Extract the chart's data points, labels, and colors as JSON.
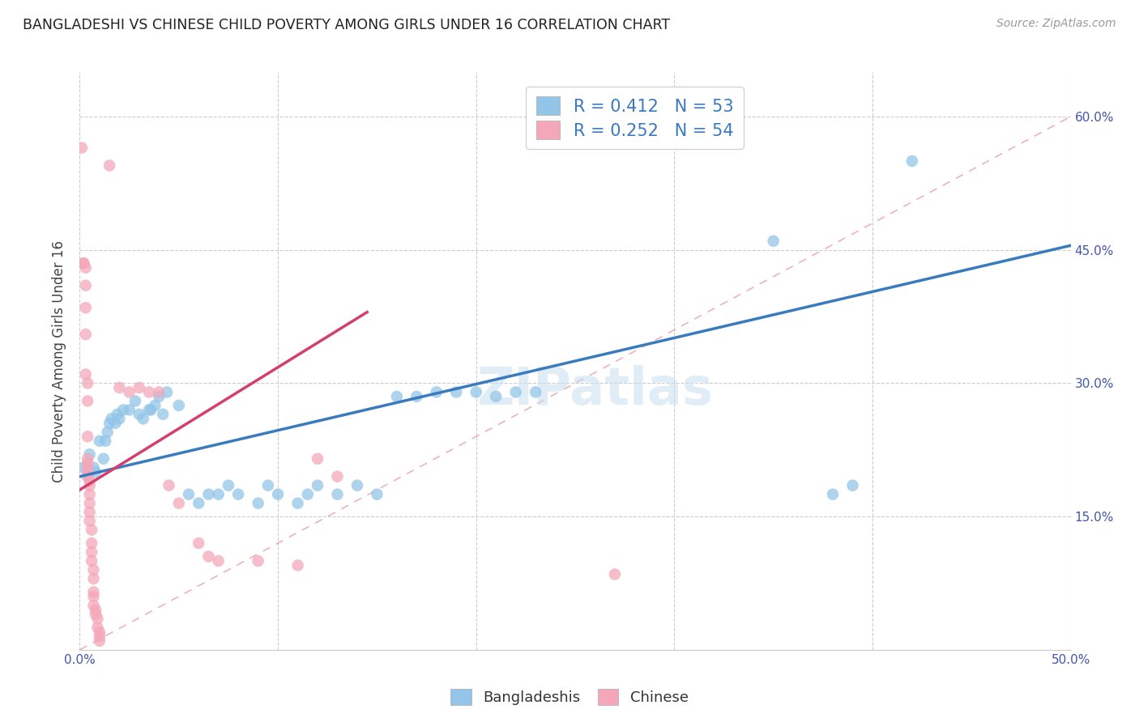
{
  "title": "BANGLADESHI VS CHINESE CHILD POVERTY AMONG GIRLS UNDER 16 CORRELATION CHART",
  "source": "Source: ZipAtlas.com",
  "ylabel": "Child Poverty Among Girls Under 16",
  "xlim": [
    0.0,
    0.5
  ],
  "ylim": [
    0.0,
    0.65
  ],
  "xticks": [
    0.0,
    0.1,
    0.2,
    0.3,
    0.4,
    0.5
  ],
  "yticks": [
    0.0,
    0.15,
    0.3,
    0.45,
    0.6
  ],
  "xticklabels": [
    "0.0%",
    "",
    "",
    "",
    "",
    "50.0%"
  ],
  "yticklabels_right": [
    "",
    "15.0%",
    "30.0%",
    "45.0%",
    "60.0%"
  ],
  "watermark": "ZIPatlas",
  "blue_color": "#92c5e8",
  "pink_color": "#f4a7b9",
  "blue_line_color": "#3a7abf",
  "pink_line_color": "#d43f6e",
  "ref_line_color": "#e8b4b8",
  "blue_scatter": [
    [
      0.002,
      0.205
    ],
    [
      0.004,
      0.195
    ],
    [
      0.005,
      0.22
    ],
    [
      0.007,
      0.205
    ],
    [
      0.008,
      0.2
    ],
    [
      0.01,
      0.235
    ],
    [
      0.012,
      0.215
    ],
    [
      0.013,
      0.235
    ],
    [
      0.014,
      0.245
    ],
    [
      0.015,
      0.255
    ],
    [
      0.016,
      0.26
    ],
    [
      0.018,
      0.255
    ],
    [
      0.019,
      0.265
    ],
    [
      0.02,
      0.26
    ],
    [
      0.022,
      0.27
    ],
    [
      0.025,
      0.27
    ],
    [
      0.028,
      0.28
    ],
    [
      0.03,
      0.265
    ],
    [
      0.032,
      0.26
    ],
    [
      0.035,
      0.27
    ],
    [
      0.036,
      0.27
    ],
    [
      0.038,
      0.275
    ],
    [
      0.04,
      0.285
    ],
    [
      0.042,
      0.265
    ],
    [
      0.044,
      0.29
    ],
    [
      0.05,
      0.275
    ],
    [
      0.055,
      0.175
    ],
    [
      0.06,
      0.165
    ],
    [
      0.065,
      0.175
    ],
    [
      0.07,
      0.175
    ],
    [
      0.075,
      0.185
    ],
    [
      0.08,
      0.175
    ],
    [
      0.09,
      0.165
    ],
    [
      0.095,
      0.185
    ],
    [
      0.1,
      0.175
    ],
    [
      0.11,
      0.165
    ],
    [
      0.115,
      0.175
    ],
    [
      0.12,
      0.185
    ],
    [
      0.13,
      0.175
    ],
    [
      0.14,
      0.185
    ],
    [
      0.15,
      0.175
    ],
    [
      0.16,
      0.285
    ],
    [
      0.17,
      0.285
    ],
    [
      0.18,
      0.29
    ],
    [
      0.19,
      0.29
    ],
    [
      0.2,
      0.29
    ],
    [
      0.21,
      0.285
    ],
    [
      0.22,
      0.29
    ],
    [
      0.23,
      0.29
    ],
    [
      0.35,
      0.46
    ],
    [
      0.38,
      0.175
    ],
    [
      0.39,
      0.185
    ],
    [
      0.42,
      0.55
    ]
  ],
  "pink_scatter": [
    [
      0.001,
      0.565
    ],
    [
      0.002,
      0.435
    ],
    [
      0.002,
      0.435
    ],
    [
      0.003,
      0.43
    ],
    [
      0.003,
      0.41
    ],
    [
      0.003,
      0.385
    ],
    [
      0.003,
      0.355
    ],
    [
      0.003,
      0.31
    ],
    [
      0.004,
      0.3
    ],
    [
      0.004,
      0.28
    ],
    [
      0.004,
      0.24
    ],
    [
      0.004,
      0.215
    ],
    [
      0.004,
      0.21
    ],
    [
      0.004,
      0.205
    ],
    [
      0.004,
      0.2
    ],
    [
      0.004,
      0.195
    ],
    [
      0.005,
      0.19
    ],
    [
      0.005,
      0.185
    ],
    [
      0.005,
      0.175
    ],
    [
      0.005,
      0.165
    ],
    [
      0.005,
      0.155
    ],
    [
      0.005,
      0.145
    ],
    [
      0.006,
      0.135
    ],
    [
      0.006,
      0.12
    ],
    [
      0.006,
      0.11
    ],
    [
      0.006,
      0.1
    ],
    [
      0.007,
      0.09
    ],
    [
      0.007,
      0.08
    ],
    [
      0.007,
      0.065
    ],
    [
      0.007,
      0.06
    ],
    [
      0.007,
      0.05
    ],
    [
      0.008,
      0.045
    ],
    [
      0.008,
      0.04
    ],
    [
      0.009,
      0.035
    ],
    [
      0.009,
      0.025
    ],
    [
      0.01,
      0.02
    ],
    [
      0.01,
      0.015
    ],
    [
      0.01,
      0.01
    ],
    [
      0.015,
      0.545
    ],
    [
      0.02,
      0.295
    ],
    [
      0.025,
      0.29
    ],
    [
      0.03,
      0.295
    ],
    [
      0.035,
      0.29
    ],
    [
      0.04,
      0.29
    ],
    [
      0.045,
      0.185
    ],
    [
      0.05,
      0.165
    ],
    [
      0.06,
      0.12
    ],
    [
      0.065,
      0.105
    ],
    [
      0.07,
      0.1
    ],
    [
      0.09,
      0.1
    ],
    [
      0.11,
      0.095
    ],
    [
      0.12,
      0.215
    ],
    [
      0.13,
      0.195
    ],
    [
      0.27,
      0.085
    ]
  ],
  "blue_line": [
    [
      0.0,
      0.195
    ],
    [
      0.5,
      0.455
    ]
  ],
  "pink_line": [
    [
      0.0,
      0.18
    ],
    [
      0.145,
      0.38
    ]
  ]
}
